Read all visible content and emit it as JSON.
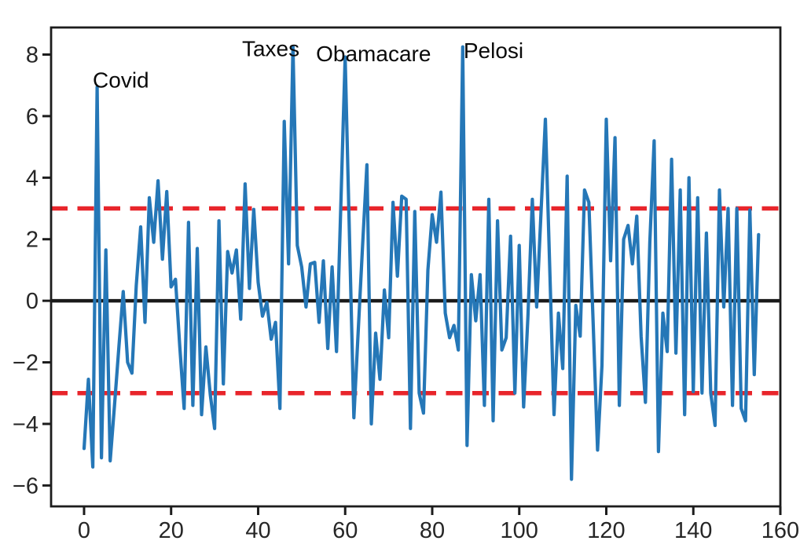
{
  "figure": {
    "background": "#ffffff",
    "plot_background": "#ffffff",
    "spine_color": "#1c1c1c",
    "tick_label_color": "#262626",
    "annotation_color": "#0a0a0a"
  },
  "chart_data": {
    "type": "line",
    "title": "",
    "xlabel": "",
    "ylabel": "",
    "grid": false,
    "legend": null,
    "xlim": [
      -7.58,
      160.0
    ],
    "ylim": [
      -6.68,
      8.88
    ],
    "x_ticks": [
      0,
      20,
      40,
      60,
      80,
      100,
      120,
      140,
      160
    ],
    "y_ticks": [
      -6,
      -4,
      -2,
      0,
      2,
      4,
      6,
      8
    ],
    "hlines": [
      {
        "name": "zero-line",
        "y": 0,
        "style": "solid",
        "color": "#1a1a1a",
        "width": 4.5
      },
      {
        "name": "upper-threshold",
        "y": 3,
        "style": "dashed",
        "color": "#e8252b",
        "width": 5.5
      },
      {
        "name": "lower-threshold",
        "y": -3,
        "style": "dashed",
        "color": "#e8252b",
        "width": 5.5
      }
    ],
    "annotations": [
      {
        "text": "Covid",
        "x": 2.0,
        "y": 7.19
      },
      {
        "text": "Taxes",
        "x": 36.3,
        "y": 8.2
      },
      {
        "text": "Obamacare",
        "x": 53.3,
        "y": 8.04
      },
      {
        "text": "Pelosi",
        "x": 87.2,
        "y": 8.14
      }
    ],
    "series": [
      {
        "name": "residuals",
        "color": "#2577b7",
        "width": 4.2,
        "x_start": 0,
        "values": [
          -4.8,
          -2.55,
          -5.4,
          6.95,
          -5.1,
          1.65,
          -5.2,
          -3.4,
          -1.5,
          0.3,
          -2.0,
          -2.35,
          0.5,
          2.4,
          -0.7,
          3.35,
          1.9,
          3.9,
          1.35,
          3.55,
          0.45,
          0.7,
          -1.5,
          -3.5,
          2.55,
          -3.4,
          1.7,
          -3.7,
          -1.5,
          -3.05,
          -4.15,
          2.6,
          -2.7,
          1.6,
          0.9,
          1.65,
          -0.6,
          3.8,
          0.4,
          2.97,
          0.6,
          -0.5,
          -0.05,
          -1.25,
          -0.7,
          -3.5,
          5.83,
          1.2,
          8.25,
          1.8,
          1.1,
          -0.2,
          1.2,
          1.25,
          -0.7,
          1.3,
          -1.55,
          1.1,
          -1.65,
          3.1,
          7.92,
          2.0,
          -3.8,
          -1.0,
          1.8,
          4.42,
          -4.0,
          -1.05,
          -2.55,
          0.35,
          -1.2,
          3.2,
          0.8,
          3.4,
          3.3,
          -4.15,
          2.9,
          -3.0,
          -3.65,
          1.0,
          2.8,
          1.9,
          3.53,
          -0.4,
          -1.2,
          -0.8,
          -1.6,
          8.25,
          -4.7,
          0.85,
          -0.65,
          0.85,
          -3.4,
          3.3,
          -3.9,
          2.6,
          -1.6,
          -1.2,
          2.1,
          -3.0,
          1.8,
          -3.45,
          -0.5,
          3.3,
          -0.2,
          2.85,
          5.9,
          1.1,
          -3.7,
          -0.4,
          -2.2,
          4.05,
          -5.8,
          -0.15,
          -1.15,
          3.6,
          3.2,
          -0.8,
          -4.85,
          -2.1,
          5.9,
          1.3,
          5.3,
          -3.4,
          2.0,
          2.45,
          1.2,
          2.75,
          -1.15,
          -3.3,
          1.9,
          5.2,
          -4.9,
          -0.4,
          -1.65,
          4.6,
          -1.7,
          3.6,
          -3.7,
          4.0,
          -2.95,
          3.35,
          -3.0,
          2.2,
          -3.0,
          -4.05,
          3.6,
          -0.2,
          3.0,
          -3.4,
          3.0,
          -3.5,
          -3.9,
          2.95,
          -2.4,
          2.15
        ]
      }
    ]
  }
}
